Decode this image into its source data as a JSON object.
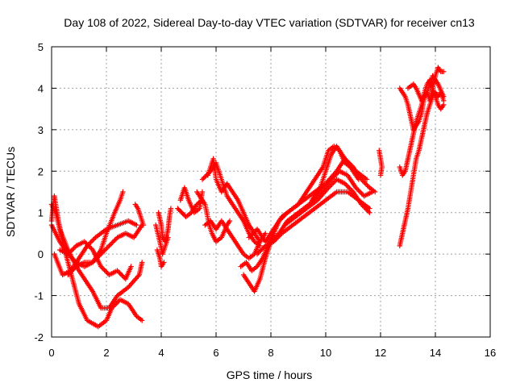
{
  "chart_data": {
    "type": "scatter",
    "title": "Day 108 of 2022, Sidereal Day-to-day VTEC variation (SDTVAR) for receiver cn13",
    "xlabel": "GPS time / hours",
    "ylabel": "SDTVAR / TECUs",
    "xlim": [
      0,
      16
    ],
    "ylim": [
      -2,
      5
    ],
    "xticks": [
      0,
      2,
      4,
      6,
      8,
      10,
      12,
      14,
      16
    ],
    "yticks": [
      -2,
      -1,
      0,
      1,
      2,
      3,
      4,
      5
    ],
    "grid": true,
    "marker": "+",
    "color": "#ff0000",
    "tracks": [
      [
        [
          0.0,
          0.8
        ],
        [
          0.1,
          1.4
        ],
        [
          0.25,
          0.8
        ],
        [
          0.4,
          0.3
        ],
        [
          0.6,
          -0.2
        ],
        [
          0.8,
          -0.7
        ],
        [
          1.0,
          -1.2
        ],
        [
          1.3,
          -1.6
        ],
        [
          1.7,
          -1.75
        ],
        [
          2.0,
          -1.6
        ],
        [
          2.2,
          -1.3
        ],
        [
          2.5,
          -1.1
        ],
        [
          2.8,
          -1.2
        ],
        [
          3.1,
          -1.5
        ],
        [
          3.3,
          -1.6
        ]
      ],
      [
        [
          0.0,
          1.2
        ],
        [
          0.15,
          1.0
        ],
        [
          0.3,
          0.6
        ],
        [
          0.6,
          0.1
        ],
        [
          0.9,
          -0.3
        ],
        [
          1.2,
          -0.6
        ],
        [
          1.5,
          -0.9
        ],
        [
          1.8,
          -1.3
        ],
        [
          2.1,
          -1.3
        ],
        [
          2.4,
          -1.0
        ],
        [
          2.8,
          -0.8
        ],
        [
          3.2,
          -0.5
        ],
        [
          3.3,
          -0.2
        ]
      ],
      [
        [
          0.0,
          0.7
        ],
        [
          0.3,
          0.3
        ],
        [
          0.6,
          0.0
        ],
        [
          0.9,
          -0.2
        ],
        [
          1.2,
          -0.3
        ],
        [
          1.5,
          -0.2
        ],
        [
          1.8,
          0.1
        ],
        [
          2.0,
          0.5
        ],
        [
          2.3,
          1.0
        ],
        [
          2.5,
          1.3
        ],
        [
          2.6,
          1.5
        ]
      ],
      [
        [
          0.1,
          0.0
        ],
        [
          0.4,
          -0.5
        ],
        [
          0.7,
          -0.4
        ],
        [
          1.0,
          -0.1
        ],
        [
          1.3,
          0.2
        ],
        [
          1.6,
          0.4
        ],
        [
          2.0,
          0.6
        ],
        [
          2.4,
          0.7
        ],
        [
          2.8,
          0.8
        ],
        [
          3.1,
          0.7
        ]
      ],
      [
        [
          0.3,
          0.1
        ],
        [
          0.6,
          0.0
        ],
        [
          0.9,
          0.2
        ],
        [
          1.2,
          0.3
        ],
        [
          1.5,
          0.1
        ],
        [
          1.8,
          -0.3
        ],
        [
          2.1,
          -0.5
        ],
        [
          2.4,
          -0.4
        ],
        [
          2.7,
          -0.6
        ],
        [
          2.9,
          -0.3
        ]
      ],
      [
        [
          0.6,
          -0.5
        ],
        [
          0.9,
          -0.3
        ],
        [
          1.2,
          -0.2
        ],
        [
          1.5,
          -0.2
        ],
        [
          1.8,
          0.0
        ],
        [
          2.1,
          0.2
        ],
        [
          2.4,
          0.4
        ],
        [
          2.7,
          0.5
        ],
        [
          3.0,
          0.4
        ],
        [
          3.3,
          0.7
        ]
      ],
      [
        [
          3.05,
          1.2
        ],
        [
          3.15,
          1.1
        ],
        [
          3.25,
          0.9
        ],
        [
          3.35,
          0.7
        ]
      ],
      [
        [
          3.9,
          1.0
        ],
        [
          4.0,
          0.7
        ],
        [
          4.05,
          0.4
        ],
        [
          4.15,
          0.3
        ],
        [
          4.25,
          0.6
        ],
        [
          4.3,
          0.9
        ],
        [
          4.35,
          1.1
        ]
      ],
      [
        [
          3.8,
          0.7
        ],
        [
          3.95,
          0.3
        ],
        [
          4.05,
          0.0
        ],
        [
          4.15,
          0.2
        ],
        [
          4.25,
          0.4
        ]
      ],
      [
        [
          3.85,
          0.1
        ],
        [
          3.95,
          -0.1
        ],
        [
          4.0,
          -0.3
        ],
        [
          4.1,
          -0.2
        ]
      ],
      [
        [
          4.7,
          1.3
        ],
        [
          4.85,
          1.6
        ],
        [
          5.0,
          1.3
        ],
        [
          5.2,
          1.0
        ],
        [
          5.4,
          1.1
        ],
        [
          5.5,
          1.5
        ]
      ],
      [
        [
          4.6,
          1.1
        ],
        [
          4.75,
          1.0
        ],
        [
          4.9,
          0.9
        ],
        [
          5.1,
          1.0
        ],
        [
          5.3,
          1.2
        ],
        [
          5.5,
          1.3
        ]
      ],
      [
        [
          5.3,
          1.5
        ],
        [
          5.6,
          1.2
        ],
        [
          5.75,
          0.7
        ],
        [
          5.85,
          0.5
        ],
        [
          6.0,
          0.3
        ],
        [
          6.2,
          0.4
        ],
        [
          6.4,
          0.7
        ],
        [
          6.5,
          0.8
        ]
      ],
      [
        [
          5.5,
          1.8
        ],
        [
          5.8,
          2.0
        ],
        [
          6.0,
          2.2
        ],
        [
          6.1,
          2.0
        ],
        [
          6.2,
          1.8
        ],
        [
          6.4,
          1.4
        ],
        [
          6.6,
          1.2
        ],
        [
          6.8,
          1.0
        ],
        [
          7.0,
          0.8
        ],
        [
          7.2,
          0.5
        ],
        [
          7.4,
          0.3
        ],
        [
          7.6,
          0.2
        ]
      ],
      [
        [
          5.7,
          1.9
        ],
        [
          5.9,
          2.3
        ],
        [
          6.0,
          1.8
        ],
        [
          6.2,
          1.5
        ],
        [
          6.4,
          1.7
        ],
        [
          6.6,
          1.5
        ],
        [
          6.8,
          1.3
        ],
        [
          7.0,
          1.0
        ],
        [
          7.2,
          0.7
        ],
        [
          7.4,
          0.5
        ],
        [
          7.6,
          0.3
        ],
        [
          7.8,
          0.5
        ]
      ],
      [
        [
          5.6,
          0.7
        ],
        [
          5.8,
          0.8
        ],
        [
          6.0,
          0.6
        ],
        [
          6.2,
          0.8
        ],
        [
          6.4,
          0.6
        ],
        [
          6.6,
          0.4
        ],
        [
          6.8,
          0.2
        ],
        [
          7.0,
          0.0
        ],
        [
          7.2,
          -0.1
        ],
        [
          7.4,
          0.0
        ],
        [
          7.6,
          0.3
        ]
      ],
      [
        [
          6.9,
          -0.3
        ],
        [
          7.1,
          -0.2
        ],
        [
          7.3,
          -0.4
        ],
        [
          7.5,
          -0.3
        ],
        [
          7.7,
          -0.1
        ],
        [
          7.9,
          0.2
        ],
        [
          8.1,
          0.5
        ],
        [
          8.3,
          0.8
        ],
        [
          8.6,
          1.0
        ],
        [
          9.0,
          1.2
        ],
        [
          9.3,
          1.5
        ],
        [
          9.6,
          1.8
        ],
        [
          9.9,
          2.1
        ],
        [
          10.1,
          2.5
        ],
        [
          10.3,
          2.6
        ],
        [
          10.5,
          2.5
        ],
        [
          10.7,
          2.2
        ],
        [
          10.9,
          2.1
        ],
        [
          11.1,
          2.0
        ],
        [
          11.3,
          1.9
        ],
        [
          11.5,
          1.8
        ]
      ],
      [
        [
          7.0,
          -0.5
        ],
        [
          7.2,
          -0.7
        ],
        [
          7.4,
          -0.9
        ],
        [
          7.6,
          -0.6
        ],
        [
          7.8,
          -0.1
        ],
        [
          8.0,
          0.3
        ],
        [
          8.3,
          0.5
        ],
        [
          8.6,
          0.8
        ],
        [
          9.0,
          1.0
        ],
        [
          9.4,
          1.2
        ],
        [
          9.8,
          1.5
        ],
        [
          10.2,
          1.8
        ],
        [
          10.5,
          2.0
        ],
        [
          10.8,
          1.9
        ],
        [
          11.1,
          1.6
        ],
        [
          11.4,
          1.4
        ],
        [
          11.7,
          1.5
        ]
      ],
      [
        [
          7.5,
          0.0
        ],
        [
          7.8,
          0.2
        ],
        [
          8.1,
          0.3
        ],
        [
          8.4,
          0.5
        ],
        [
          8.8,
          0.7
        ],
        [
          9.2,
          0.9
        ],
        [
          9.6,
          1.1
        ],
        [
          10.0,
          1.3
        ],
        [
          10.4,
          1.5
        ],
        [
          10.8,
          1.5
        ],
        [
          11.2,
          1.3
        ],
        [
          11.6,
          1.1
        ]
      ],
      [
        [
          7.2,
          0.4
        ],
        [
          7.5,
          0.6
        ],
        [
          7.8,
          0.3
        ],
        [
          8.1,
          0.6
        ],
        [
          8.4,
          0.9
        ],
        [
          8.8,
          1.1
        ],
        [
          9.2,
          1.3
        ],
        [
          9.6,
          1.5
        ],
        [
          10.0,
          1.7
        ],
        [
          10.4,
          2.0
        ],
        [
          10.7,
          2.3
        ],
        [
          11.0,
          2.1
        ],
        [
          11.3,
          1.8
        ],
        [
          11.6,
          1.6
        ],
        [
          11.8,
          1.5
        ]
      ],
      [
        [
          8.5,
          0.7
        ],
        [
          8.9,
          0.9
        ],
        [
          9.3,
          1.1
        ],
        [
          9.7,
          1.3
        ],
        [
          10.1,
          1.6
        ],
        [
          10.4,
          1.8
        ],
        [
          10.7,
          1.7
        ],
        [
          11.0,
          1.5
        ],
        [
          11.3,
          1.2
        ],
        [
          11.6,
          1.0
        ]
      ],
      [
        [
          9.5,
          1.3
        ],
        [
          9.8,
          1.6
        ],
        [
          10.0,
          2.0
        ],
        [
          10.2,
          2.4
        ],
        [
          10.4,
          2.6
        ],
        [
          10.6,
          2.4
        ],
        [
          10.8,
          2.2
        ],
        [
          11.0,
          2.0
        ],
        [
          11.2,
          1.8
        ]
      ],
      [
        [
          11.95,
          2.5
        ],
        [
          12.0,
          2.3
        ],
        [
          12.05,
          2.1
        ],
        [
          12.0,
          1.9
        ]
      ],
      [
        [
          12.7,
          4.0
        ],
        [
          12.8,
          3.9
        ],
        [
          12.9,
          3.8
        ],
        [
          13.0,
          3.6
        ],
        [
          13.1,
          3.3
        ],
        [
          13.2,
          3.0
        ],
        [
          13.3,
          3.1
        ],
        [
          13.4,
          3.2
        ],
        [
          13.5,
          3.4
        ],
        [
          13.6,
          3.8
        ],
        [
          13.7,
          3.9
        ],
        [
          13.8,
          3.7
        ],
        [
          13.9,
          4.0
        ],
        [
          14.0,
          4.3
        ],
        [
          14.1,
          4.5
        ],
        [
          14.2,
          4.4
        ],
        [
          14.3,
          4.4
        ]
      ],
      [
        [
          12.7,
          2.1
        ],
        [
          12.8,
          1.9
        ],
        [
          12.9,
          2.0
        ],
        [
          13.0,
          2.3
        ],
        [
          13.1,
          2.6
        ],
        [
          13.2,
          2.9
        ],
        [
          13.3,
          3.2
        ],
        [
          13.4,
          3.4
        ],
        [
          13.5,
          3.6
        ],
        [
          13.6,
          3.9
        ],
        [
          13.7,
          4.1
        ],
        [
          13.8,
          4.2
        ],
        [
          13.9,
          4.0
        ],
        [
          14.0,
          3.8
        ],
        [
          14.1,
          3.6
        ],
        [
          14.2,
          3.5
        ],
        [
          14.3,
          3.6
        ]
      ],
      [
        [
          12.7,
          0.2
        ],
        [
          12.8,
          0.5
        ],
        [
          12.9,
          0.8
        ],
        [
          13.0,
          1.1
        ],
        [
          13.1,
          1.5
        ],
        [
          13.2,
          1.9
        ],
        [
          13.3,
          2.3
        ],
        [
          13.4,
          2.5
        ],
        [
          13.5,
          2.8
        ],
        [
          13.6,
          3.1
        ],
        [
          13.7,
          3.4
        ],
        [
          13.8,
          3.6
        ],
        [
          13.9,
          3.8
        ],
        [
          14.0,
          3.9
        ],
        [
          14.1,
          3.8
        ],
        [
          14.2,
          3.9
        ],
        [
          14.3,
          3.7
        ]
      ],
      [
        [
          13.0,
          4.0
        ],
        [
          13.2,
          4.1
        ],
        [
          13.3,
          4.0
        ],
        [
          13.5,
          3.7
        ],
        [
          13.7,
          3.9
        ],
        [
          13.9,
          4.3
        ],
        [
          14.1,
          4.1
        ],
        [
          14.3,
          3.8
        ]
      ]
    ]
  }
}
